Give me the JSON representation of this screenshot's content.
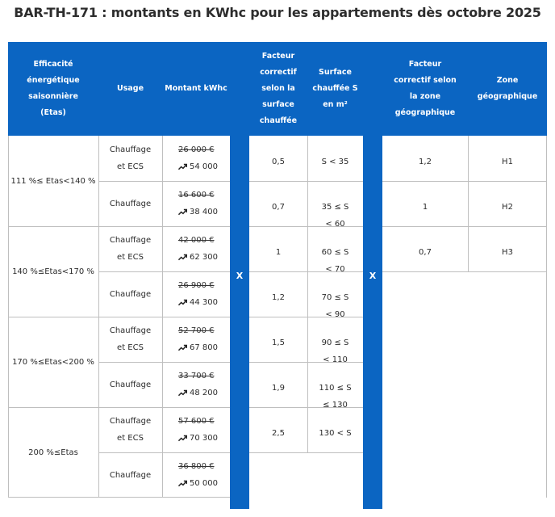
{
  "title": "BAR-TH-171 : montants en KWhc pour les appartements dès octobre 2025",
  "headers": {
    "efficacite": "Efficacité énergétique saisonnière (Etas)",
    "usage": "Usage",
    "montant": "Montant kWhc",
    "facteur_surface": "Facteur correctif selon la surface chauffée",
    "surface": "Surface chauffée S en m²",
    "facteur_zone": "Facteur correctif selon la zone géographique",
    "zone": "Zone géographique",
    "multiply_1": "X",
    "multiply_2": "X"
  },
  "efficiency_groups": [
    {
      "range": "111 %≤ Etas<140 %",
      "rows": [
        {
          "usage": "Chauffage et ECS",
          "old": "26 000 €",
          "new": "54 000"
        },
        {
          "usage": "Chauffage",
          "old": "16 600 €",
          "new": "38 400"
        }
      ]
    },
    {
      "range": "140 %≤Etas<170 %",
      "rows": [
        {
          "usage": "Chauffage et ECS",
          "old": "42 000 €",
          "new": "62 300"
        },
        {
          "usage": "Chauffage",
          "old": "26 900 €",
          "new": "44 300"
        }
      ]
    },
    {
      "range": "170 %≤Etas<200 %",
      "rows": [
        {
          "usage": "Chauffage et ECS",
          "old": "52 700 €",
          "new": "67 800"
        },
        {
          "usage": "Chauffage",
          "old": "33 700 €",
          "new": "48 200"
        }
      ]
    },
    {
      "range": "200 %≤Etas",
      "rows": [
        {
          "usage": "Chauffage et ECS",
          "old": "57 600 €",
          "new": "70 300"
        },
        {
          "usage": "Chauffage",
          "old": "36 800 €",
          "new": "50 000"
        }
      ]
    }
  ],
  "surface_factors": [
    {
      "factor": "0,5",
      "surface": "S < 35"
    },
    {
      "factor": "0,7",
      "surface": "35 ≤ S < 60"
    },
    {
      "factor": "1",
      "surface": "60 ≤ S < 70"
    },
    {
      "factor": "1,2",
      "surface": "70 ≤ S < 90"
    },
    {
      "factor": "1,5",
      "surface": "90 ≤ S < 110"
    },
    {
      "factor": "1,9",
      "surface": "110 ≤ S ≤ 130"
    },
    {
      "factor": "2,5",
      "surface": "130 < S"
    }
  ],
  "zone_factors": [
    {
      "factor": "1,2",
      "zone": "H1"
    },
    {
      "factor": "1",
      "zone": "H2"
    },
    {
      "factor": "0,7",
      "zone": "H3"
    }
  ],
  "colors": {
    "header_blue": "#0b65c2",
    "grid": "#bfbfbf"
  },
  "icons": {
    "increase": "trending-up-arrow-icon"
  }
}
